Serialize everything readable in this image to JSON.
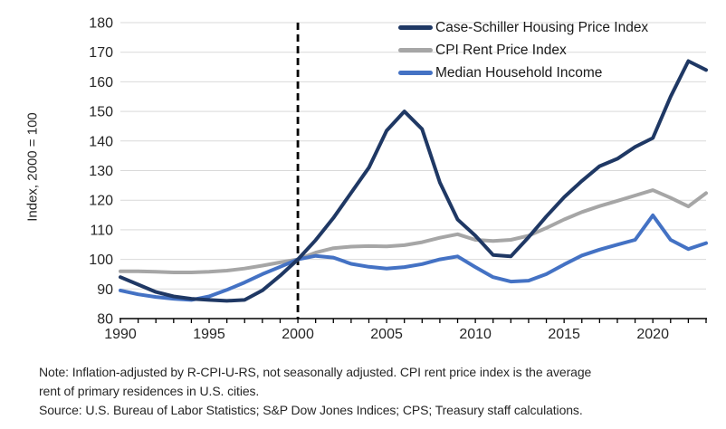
{
  "chart_data": {
    "type": "line",
    "title": "",
    "xlabel": "",
    "ylabel": "Index, 2000 = 100",
    "x_range": [
      1990,
      2023
    ],
    "y_range": [
      80,
      180
    ],
    "x_major_ticks": [
      1990,
      1995,
      2000,
      2005,
      2010,
      2015,
      2020
    ],
    "y_ticks": [
      80,
      90,
      100,
      110,
      120,
      130,
      140,
      150,
      160,
      170,
      180
    ],
    "reference_line_x": 2000,
    "grid": "horizontal-only",
    "legend_position": "top-right",
    "years": [
      1990,
      1991,
      1992,
      1993,
      1994,
      1995,
      1996,
      1997,
      1998,
      1999,
      2000,
      2001,
      2002,
      2003,
      2004,
      2005,
      2006,
      2007,
      2008,
      2009,
      2010,
      2011,
      2012,
      2013,
      2014,
      2015,
      2016,
      2017,
      2018,
      2019,
      2020,
      2021,
      2022,
      2023
    ],
    "series": [
      {
        "name": "Case-Schiller Housing Price Index",
        "color": "#1F3864",
        "values": [
          94,
          91.5,
          89,
          87.5,
          86.7,
          86.3,
          86,
          86.3,
          89.5,
          94.5,
          100,
          106.5,
          114,
          122.5,
          131,
          143.5,
          150,
          144,
          126,
          113.5,
          108,
          101.5,
          101,
          107.5,
          114.5,
          121,
          126.5,
          131.5,
          134,
          138,
          141,
          155,
          167,
          164
        ]
      },
      {
        "name": "CPI Rent Price Index",
        "color": "#A6A6A6",
        "values": [
          96,
          96,
          95.8,
          95.6,
          95.6,
          95.8,
          96.2,
          96.9,
          97.9,
          99,
          100,
          102.3,
          103.8,
          104.3,
          104.5,
          104.4,
          104.8,
          105.8,
          107.3,
          108.5,
          106.6,
          106.2,
          106.6,
          108,
          110.6,
          113.5,
          116,
          118,
          119.8,
          121.6,
          123.4,
          120.8,
          117.9,
          122.4
        ]
      },
      {
        "name": "Median Household Income",
        "color": "#4472C4",
        "values": [
          89.5,
          88.2,
          87.3,
          86.7,
          86.3,
          87.5,
          89.7,
          92.2,
          95,
          97.5,
          100,
          101.2,
          100.6,
          98.5,
          97.5,
          96.9,
          97.4,
          98.4,
          100,
          101,
          97.4,
          94,
          92.5,
          92.8,
          95,
          98.3,
          101.3,
          103.3,
          105,
          106.6,
          114.9,
          106.6,
          103.5,
          105.5
        ]
      }
    ]
  },
  "legend": {
    "items": [
      {
        "label": "Case-Schiller Housing Price Index"
      },
      {
        "label": "CPI Rent Price Index"
      },
      {
        "label": "Median Household Income"
      }
    ]
  },
  "axis": {
    "y_title": "Index, 2000 = 100"
  },
  "note": {
    "line1": "Note: Inflation-adjusted by R-CPI-U-RS, not seasonally adjusted. CPI rent price index is the average",
    "line2": "rent of primary residences in U.S. cities.",
    "line3": "Source: U.S. Bureau of Labor Statistics; S&P Dow Jones Indices; CPS; Treasury staff calculations."
  },
  "colors": {
    "grid": "#D9D9D9",
    "axis": "#000000",
    "reference_line": "#000000",
    "tick_text": "#262626"
  }
}
